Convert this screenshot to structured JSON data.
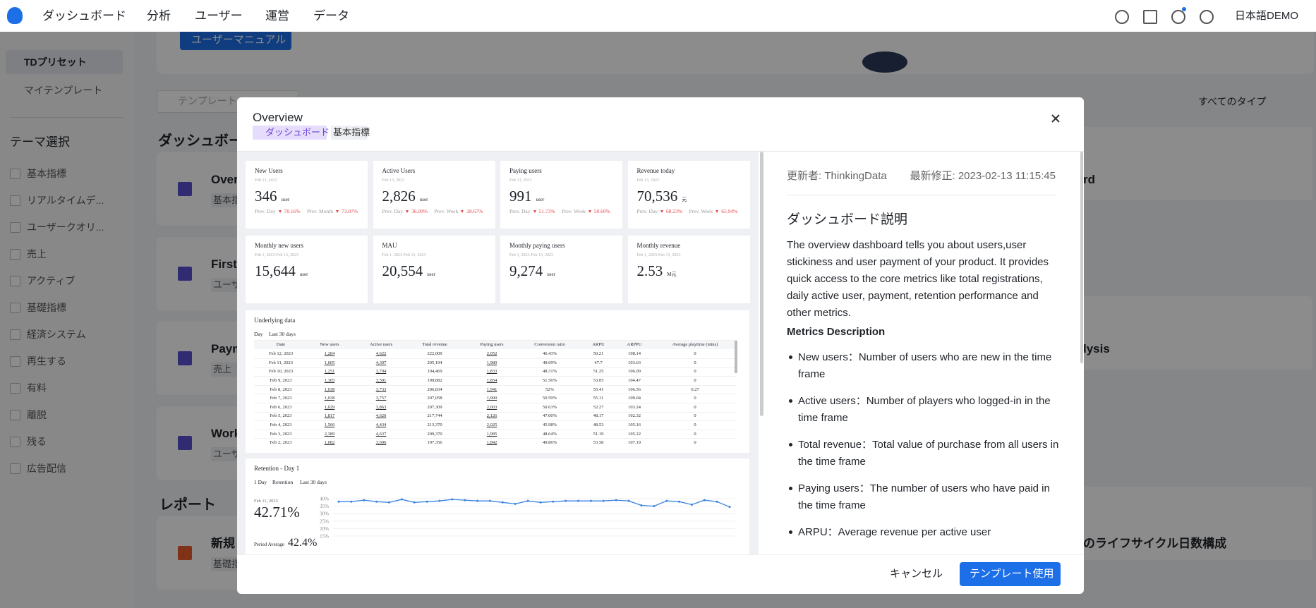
{
  "nav": {
    "items": [
      "ダッシュボード",
      "分析",
      "ユーザー",
      "運営",
      "データ"
    ],
    "language": "日本語DEMO"
  },
  "sidebar": {
    "tabs": [
      "TDプリセット",
      "マイテンプレート"
    ],
    "theme_title": "テーマ選択",
    "themes": [
      "基本指標",
      "リアルタイムデ...",
      "ユーザークオリ...",
      "売上",
      "アクティブ",
      "基礎指標",
      "経済システム",
      "再生する",
      "有料",
      "離脱",
      "残る",
      "広告配信"
    ]
  },
  "background": {
    "manual_button": "ユーザーマニュアル",
    "search_placeholder": "テンプレート",
    "type_filter": "すべてのタイプ",
    "section_dashboard": "ダッシュボー",
    "section_report": "レポート",
    "left_cards": [
      {
        "title": "Over",
        "tag": "基本指"
      },
      {
        "title": "First",
        "tag": "ユーザ"
      },
      {
        "title": "Paym",
        "tag": "売上"
      },
      {
        "title": "Work",
        "tag": "ユーザ"
      },
      {
        "title": "新規",
        "tag": "基礎指"
      }
    ],
    "right_texts": [
      "rd",
      "lysis",
      "のライフサイクル日数構成"
    ]
  },
  "modal": {
    "title": "Overview",
    "tags": [
      "ダッシュボード",
      "基本指標"
    ],
    "metric_cards": [
      {
        "title": "New Users",
        "date": "Feb 13, 2023",
        "value": "346",
        "unit": "user",
        "compare": [
          {
            "label": "Prev. Day",
            "value": "78.16%"
          },
          {
            "label": "Prev. Month",
            "value": "73.07%"
          }
        ]
      },
      {
        "title": "Active Users",
        "date": "Feb 13, 2023",
        "value": "2,826",
        "unit": "user",
        "compare": [
          {
            "label": "Prev. Day",
            "value": "36.09%"
          },
          {
            "label": "Prev. Week",
            "value": "28.67%"
          }
        ]
      },
      {
        "title": "Paying users",
        "date": "Feb 13, 2023",
        "value": "991",
        "unit": "user",
        "compare": [
          {
            "label": "Prev. Day",
            "value": "51.73%"
          },
          {
            "label": "Prev. Week",
            "value": "50.60%"
          }
        ]
      },
      {
        "title": "Revenue today",
        "date": "Feb 13, 2023",
        "value": "70,536",
        "unit": "元",
        "compare": [
          {
            "label": "Prev. Day",
            "value": "68.23%"
          },
          {
            "label": "Prev. Week",
            "value": "65.94%"
          }
        ]
      },
      {
        "title": "Monthly new users",
        "date": "Feb 1, 2023-Feb 13, 2023",
        "value": "15,644",
        "unit": "user"
      },
      {
        "title": "MAU",
        "date": "Feb 1, 2023-Feb 13, 2023",
        "value": "20,554",
        "unit": "user"
      },
      {
        "title": "Monthly paying users",
        "date": "Feb 1, 2023-Feb 13, 2023",
        "value": "9,274",
        "unit": "user"
      },
      {
        "title": "Monthly revenue",
        "date": "Feb 1, 2023-Feb 13, 2023",
        "value": "2.53",
        "unit": "M元"
      }
    ],
    "table": {
      "title": "Underlying data",
      "controls": [
        "Day",
        "Last 30 days"
      ],
      "columns": [
        "Date",
        "New users",
        "Active users",
        "Total revenue",
        "Paying users",
        "Conversion ratio",
        "ARPU",
        "ARPPU",
        "Average playtime (mins)"
      ],
      "rows": [
        [
          "Feb 12, 2023",
          "1,284",
          "4,622",
          "222,009",
          "2,052",
          "46.43%",
          "50.21",
          "108.14",
          "0"
        ],
        [
          "Feb 11, 2023",
          "1,605",
          "4,307",
          "205,194",
          "1,980",
          "49.69%",
          "47.7",
          "103.63",
          "0"
        ],
        [
          "Feb 10, 2023",
          "1,251",
          "3,794",
          "194,469",
          "1,833",
          "48.31%",
          "51.25",
          "106.09",
          "0"
        ],
        [
          "Feb 9, 2023",
          "1,305",
          "3,591",
          "190,882",
          "1,854",
          "51.56%",
          "53.05",
          "104.47",
          "0"
        ],
        [
          "Feb 8, 2023",
          "1,038",
          "3,733",
          "206,834",
          "1,941",
          "52%",
          "55.41",
          "106.56",
          "0.27"
        ],
        [
          "Feb 7, 2023",
          "1,038",
          "3,757",
          "207,058",
          "1,900",
          "50.59%",
          "55.11",
          "109.04",
          "0"
        ],
        [
          "Feb 6, 2023",
          "1,029",
          "3,863",
          "207,309",
          "2,003",
          "50.63%",
          "52.27",
          "103.24",
          "0"
        ],
        [
          "Feb 5, 2023",
          "1,817",
          "4,620",
          "217,744",
          "2,126",
          "47.00%",
          "48.17",
          "102.32",
          "0"
        ],
        [
          "Feb 4, 2023",
          "1,566",
          "4,434",
          "213,370",
          "2,025",
          "45.98%",
          "48.53",
          "105.16",
          "0"
        ],
        [
          "Feb 3, 2023",
          "2,389",
          "4,637",
          "209,370",
          "1,985",
          "48.64%",
          "51.19",
          "105.22",
          "0"
        ],
        [
          "Feb 2, 2023",
          "1,082",
          "3,696",
          "197,356",
          "1,842",
          "49.86%",
          "53.58",
          "107.19",
          "0"
        ]
      ]
    },
    "retention": {
      "title": "Retention - Day 1",
      "controls": [
        "1 Day",
        "Retention",
        "Last 30 days"
      ],
      "date": "Feb 11, 2023",
      "value": "42.71%",
      "average_label": "Period Average",
      "average": "42.4%",
      "chart": {
        "type": "line",
        "color": "#3b82e0",
        "ylim": [
          15,
          40
        ],
        "yticks": [
          {
            "value": 40,
            "label": "40%"
          },
          {
            "value": 35,
            "label": "35%"
          },
          {
            "value": 30,
            "label": "30%"
          },
          {
            "value": 25,
            "label": "25%"
          },
          {
            "value": 20,
            "label": "20%"
          },
          {
            "value": 15,
            "label": "15%"
          }
        ],
        "values": [
          38,
          38,
          39,
          38,
          37.5,
          39.5,
          37.5,
          38,
          38.5,
          39.5,
          39,
          38.5,
          38.5,
          37.5,
          36.5,
          38.5,
          37.5,
          38,
          38.5,
          38.5,
          38.5,
          38.5,
          39,
          38.5,
          35.5,
          35,
          38.5,
          38,
          36,
          39,
          38,
          34.5
        ]
      }
    },
    "info": {
      "updater": "更新者: ThinkingData",
      "modified": "最新修正: 2023-02-13 11:15:45",
      "heading": "ダッシュボード説明",
      "description": "The overview dashboard tells you about users,user stickiness and user payment of your product. It provides quick access to the core metrics like total registrations, daily active user, payment, retention performance and other metrics.",
      "metrics_title": "Metrics Description",
      "metrics": [
        "New users：Number of users who are new in the time frame",
        "Active users：Number of players who logged-in in the time frame",
        "Total revenue：Total value of purchase from all users in the time frame",
        "Paying users：The number of users who have paid in the time frame",
        "ARPU：Average revenue per active user"
      ]
    },
    "buttons": {
      "cancel": "キャンセル",
      "use": "テンプレート使用"
    }
  }
}
